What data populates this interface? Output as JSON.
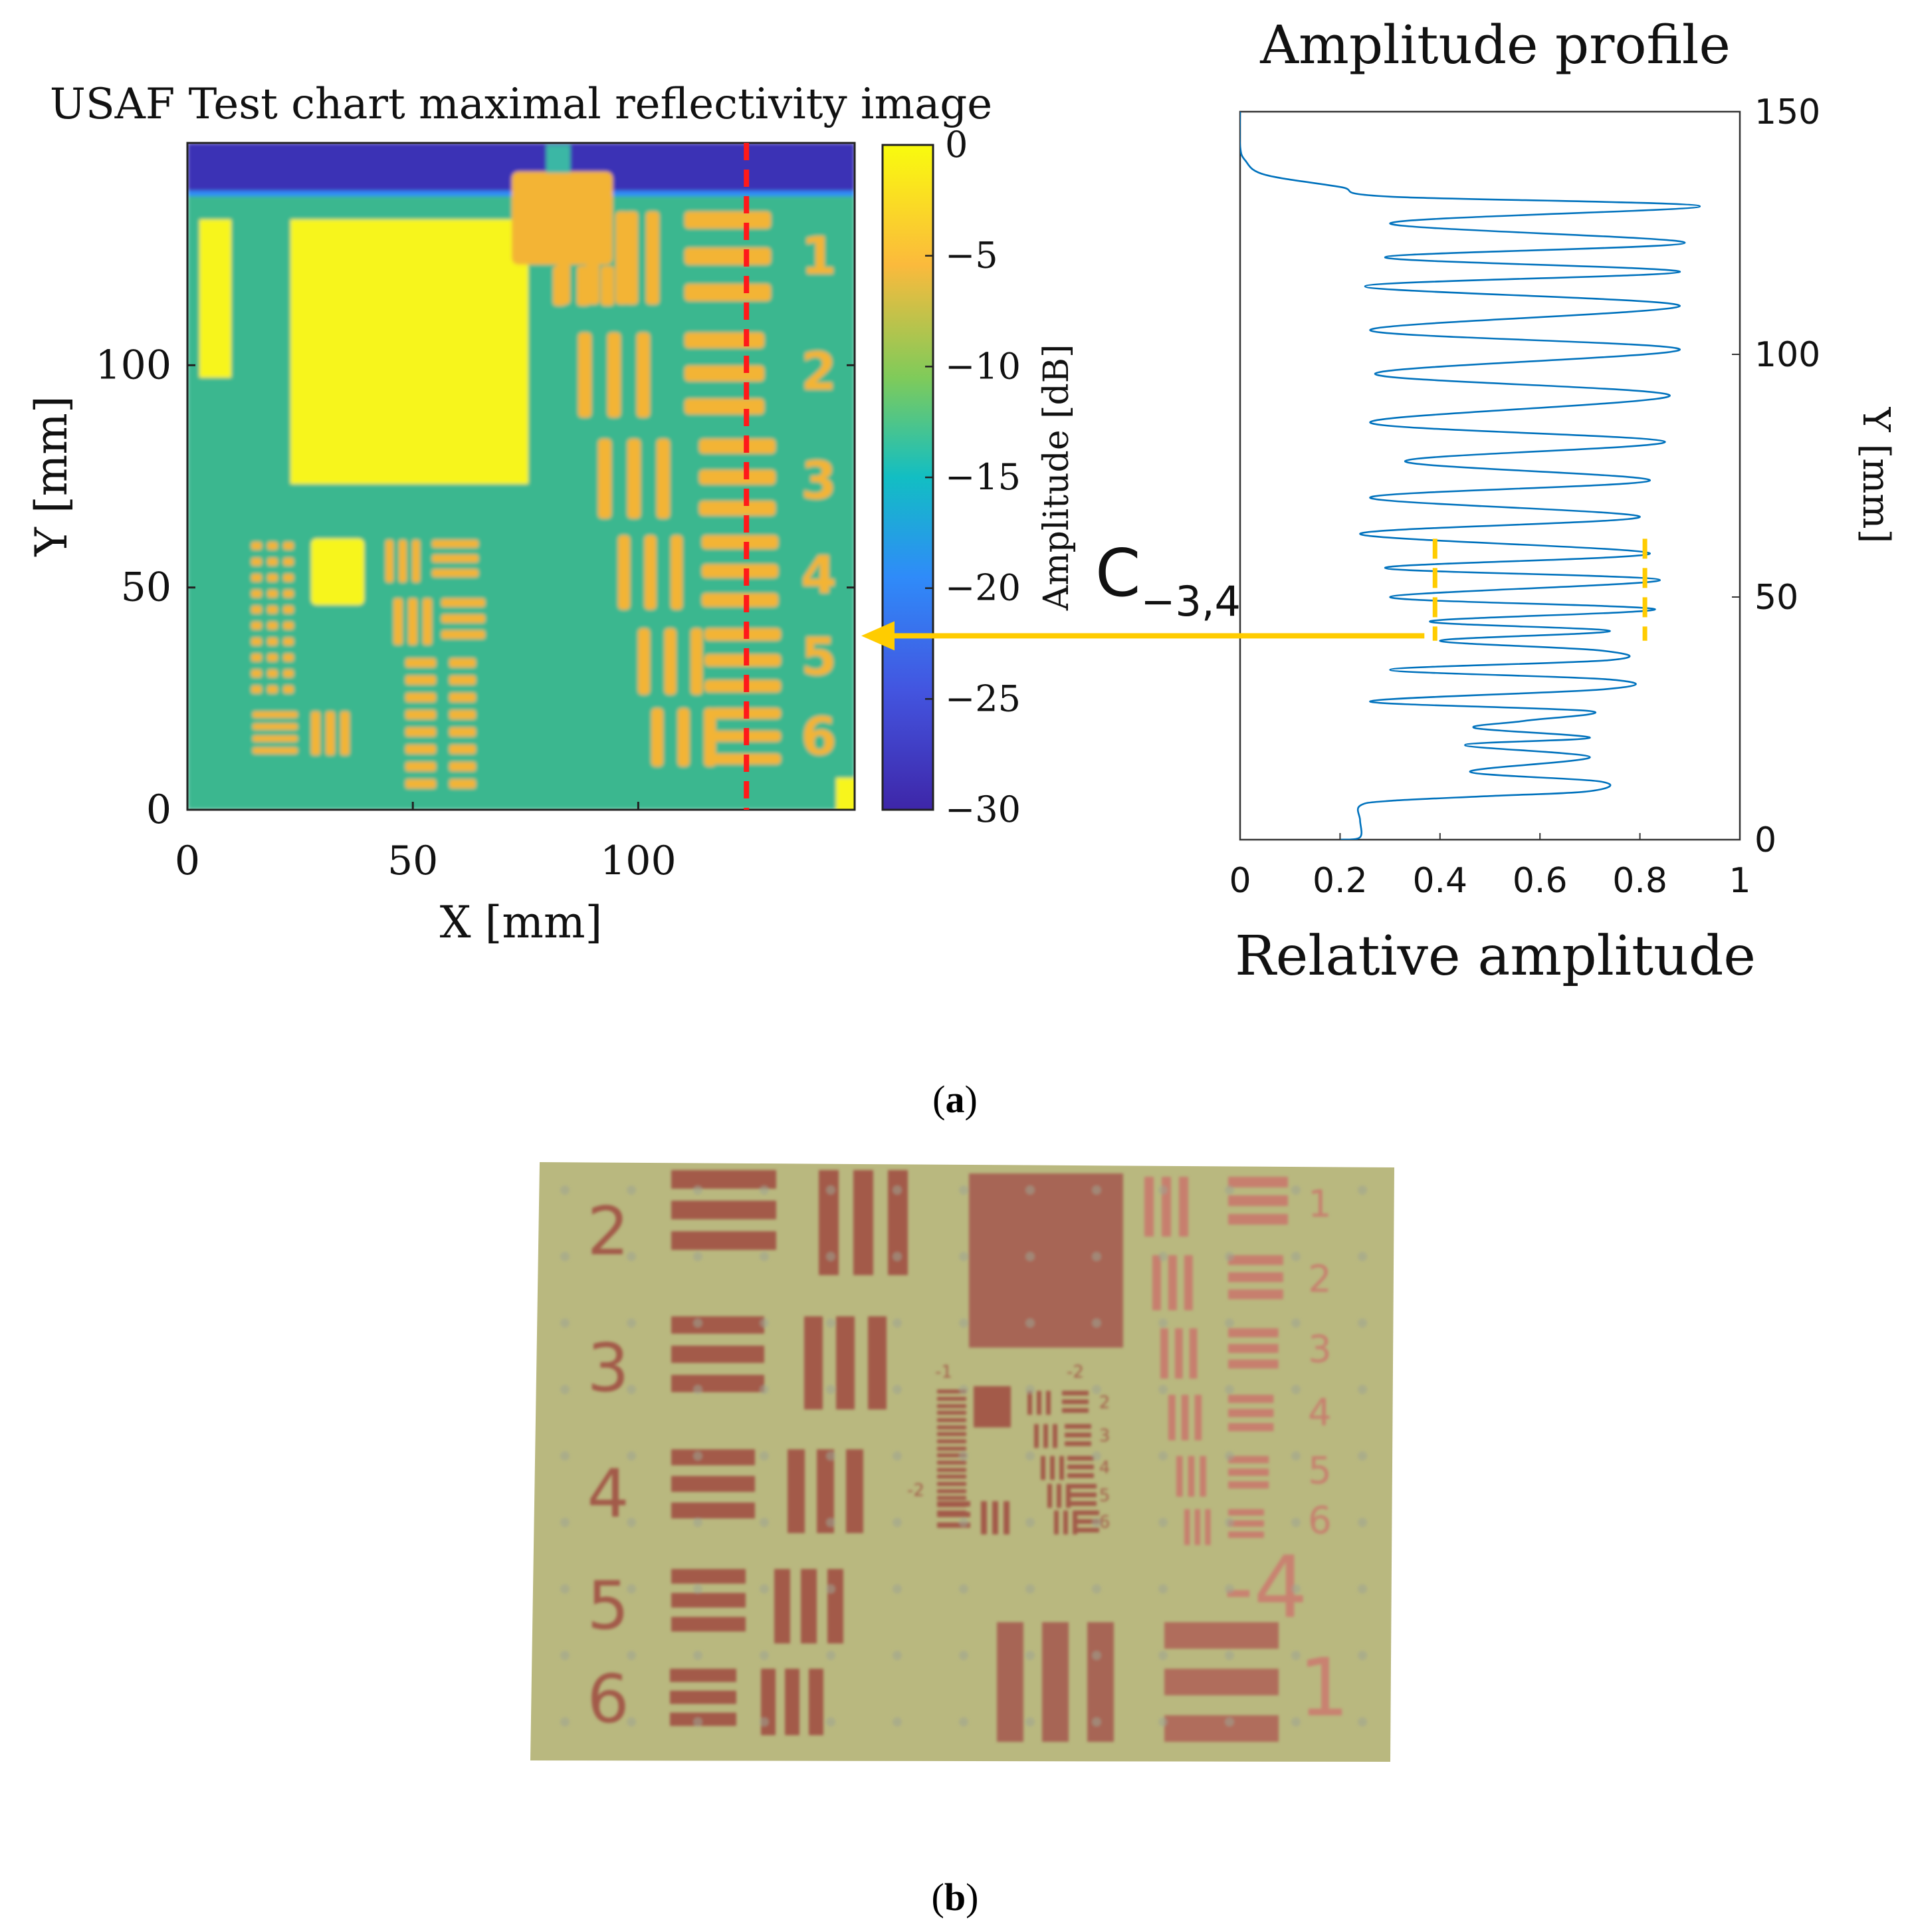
{
  "figure_labels": {
    "a_open": "(",
    "a_letter": "a",
    "a_close": ")",
    "b_open": "(",
    "b_letter": "b",
    "b_close": ")"
  },
  "chart_data": [
    {
      "type": "heatmap",
      "title": "USAF Test chart maximal reflectivity image",
      "xlabel": "X [mm]",
      "ylabel": "Y [mm]",
      "xlim": [
        0,
        148
      ],
      "ylim": [
        0,
        150
      ],
      "xticks": [
        "0",
        "50",
        "100"
      ],
      "yticks": [
        "0",
        "50",
        "100"
      ],
      "colorbar": {
        "label": "Amplitude [dB]",
        "range": [
          -30,
          0
        ],
        "ticks": [
          "0",
          "−5",
          "−10",
          "−15",
          "−20",
          "−25",
          "−30"
        ],
        "colormap": [
          "#3e26a8",
          "#2f8bf9",
          "#12bec3",
          "#7fcb5a",
          "#fbba3c",
          "#f9fb0e"
        ]
      },
      "profile_line_x": 124,
      "colors": {
        "background_level": "#3ab78f",
        "bar_level": "#f3b434",
        "square_level": "#f7f51a",
        "low_level": "#3a33b5",
        "profile_line": "#ff1a1a"
      },
      "group_labels": [
        "1",
        "2",
        "3",
        "4",
        "5",
        "6"
      ]
    },
    {
      "type": "line",
      "title": "Amplitude profile",
      "xlabel": "Relative amplitude",
      "ylabel": "Y [mm]",
      "xlim": [
        0,
        1
      ],
      "ylim": [
        0,
        150
      ],
      "xticks": [
        "0",
        "0.2",
        "0.4",
        "0.6",
        "0.8",
        "1"
      ],
      "yticks": [
        "0",
        "50",
        "100",
        "150"
      ],
      "line_color": "#0072bd",
      "series": [
        {
          "points": [
            [
              0.2,
              0
            ],
            [
              0.24,
              0.5
            ],
            [
              0.24,
              4
            ],
            [
              0.24,
              7
            ],
            [
              0.3,
              8
            ],
            [
              0.5,
              9
            ],
            [
              0.7,
              10
            ],
            [
              0.72,
              12
            ],
            [
              0.46,
              14
            ],
            [
              0.7,
              17
            ],
            [
              0.45,
              19.5
            ],
            [
              0.7,
              21
            ],
            [
              0.47,
              23
            ],
            [
              0.57,
              24.5
            ],
            [
              0.7,
              26.5
            ],
            [
              0.26,
              28.5
            ],
            [
              0.73,
              31
            ],
            [
              0.74,
              33
            ],
            [
              0.3,
              35
            ],
            [
              0.74,
              37
            ],
            [
              0.72,
              39
            ],
            [
              0.4,
              41
            ],
            [
              0.74,
              43
            ],
            [
              0.38,
              45
            ],
            [
              0.83,
              47.5
            ],
            [
              0.3,
              50
            ],
            [
              0.84,
              53.5
            ],
            [
              0.29,
              56
            ],
            [
              0.82,
              59
            ],
            [
              0.24,
              63
            ],
            [
              0.8,
              66.5
            ],
            [
              0.26,
              70.5
            ],
            [
              0.82,
              74
            ],
            [
              0.33,
              78
            ],
            [
              0.85,
              82
            ],
            [
              0.26,
              86
            ],
            [
              0.86,
              91.5
            ],
            [
              0.27,
              96
            ],
            [
              0.88,
              101
            ],
            [
              0.26,
              105
            ],
            [
              0.88,
              110
            ],
            [
              0.25,
              114
            ],
            [
              0.88,
              117
            ],
            [
              0.29,
              120
            ],
            [
              0.89,
              123
            ],
            [
              0.3,
              127
            ],
            [
              0.92,
              130.5
            ],
            [
              0.3,
              132.5
            ],
            [
              0.2,
              134.5
            ],
            [
              0.05,
              137
            ],
            [
              0.01,
              140
            ],
            [
              0.0,
              143
            ],
            [
              0.0,
              150
            ]
          ]
        }
      ],
      "annotation": {
        "text": "C",
        "subscript": "−3,4",
        "markers_x": [
          0.39,
          0.81
        ],
        "marker_y_range": [
          41,
          62
        ],
        "arrow_y": 42,
        "arrow_color": "#ffcc00"
      }
    }
  ],
  "photo": {
    "colors": {
      "board": "#b9b87f",
      "board_edge": "#a9a873",
      "pattern": "#a35a4a",
      "pattern_light": "#c77f6e"
    },
    "left_group_labels": [
      "2",
      "3",
      "4",
      "5",
      "6"
    ],
    "right_group_labels": [
      "1",
      "2",
      "3",
      "4",
      "5",
      "6"
    ],
    "small_group_labels": [
      "2",
      "3",
      "4",
      "5",
      "6"
    ],
    "small_group_index_left": "-1",
    "small_group_index_right": "-2",
    "small_group_index_bottom": "-2",
    "big_index": "-4",
    "big_number": "1"
  }
}
